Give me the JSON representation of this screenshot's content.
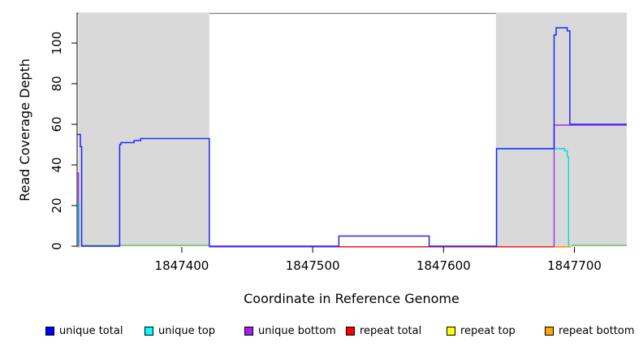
{
  "chart_data": {
    "type": "line",
    "title": "",
    "xlabel": "Coordinate in Reference Genome",
    "ylabel": "Read Coverage Depth",
    "x_range": [
      1847320,
      1847740
    ],
    "y_range": [
      0,
      115
    ],
    "x_ticks": [
      1847400,
      1847500,
      1847600,
      1847700
    ],
    "y_ticks": [
      0,
      20,
      40,
      60,
      80,
      100
    ],
    "grid": "off",
    "legend_position": "bottom",
    "frame_top_color": "#808080",
    "shaded_regions": [
      {
        "x0": 1847321,
        "x1": 1847421,
        "color": "#d9d9d9"
      },
      {
        "x0": 1847640,
        "x1": 1847740,
        "color": "#d9d9d9"
      }
    ],
    "legend": {
      "entries": [
        {
          "label": "unique total",
          "color": "#0000ff"
        },
        {
          "label": "unique top",
          "color": "#00ffff"
        },
        {
          "label": "unique bottom",
          "color": "#a020f0"
        },
        {
          "label": "repeat total",
          "color": "#ff0000"
        },
        {
          "label": "repeat top",
          "color": "#ffff00"
        },
        {
          "label": "repeat bottom",
          "color": "#ffa500"
        }
      ]
    },
    "series": [
      {
        "name": "unique bottom",
        "color": "#9b30e8",
        "width": 1.4,
        "segments": [
          [
            [
              1847320,
              36
            ],
            [
              1847321,
              36
            ],
            [
              1847321,
              0
            ]
          ],
          [
            [
              1847421,
              -0.3
            ],
            [
              1847684.5,
              -0.3
            ],
            [
              1847684.5,
              59.6
            ],
            [
              1847740,
              59.6
            ]
          ]
        ]
      },
      {
        "name": "repeat total",
        "color": "#ee1111",
        "width": 1.4,
        "segments": [
          [
            [
              1847519.5,
              -0.3
            ],
            [
              1847684.5,
              -0.3
            ]
          ]
        ]
      },
      {
        "name": "repeat top",
        "color": "#ffff00",
        "width": 1.4,
        "segments": []
      },
      {
        "name": "repeat bottom",
        "color": "#ff9900",
        "width": 1.6,
        "segments": [
          [
            [
              1847320,
              -0.3
            ],
            [
              1847322,
              -0.3
            ]
          ],
          [
            [
              1847684.5,
              -0.3
            ],
            [
              1847697.5,
              -0.3
            ]
          ]
        ]
      },
      {
        "name": "baseline overlap green",
        "color": "#6abf69",
        "width": 1.4,
        "segments": [
          [
            [
              1847323,
              0.4
            ],
            [
              1847421,
              0.4
            ]
          ],
          [
            [
              1847697.5,
              0.4
            ],
            [
              1847740,
              0.4
            ]
          ]
        ]
      },
      {
        "name": "unique top",
        "color": "#00dde0",
        "width": 1.4,
        "segments": [
          [
            [
              1847320,
              21
            ],
            [
              1847321.5,
              21
            ],
            [
              1847321.5,
              0
            ]
          ],
          [
            [
              1847640.5,
              0
            ],
            [
              1847640.5,
              48
            ],
            [
              1847692.5,
              48
            ],
            [
              1847692.5,
              47
            ],
            [
              1847694.5,
              47
            ],
            [
              1847694.5,
              44
            ],
            [
              1847695.5,
              44
            ],
            [
              1847695.5,
              0
            ]
          ]
        ]
      },
      {
        "name": "unique total",
        "color": "#2424ff",
        "width": 1.5,
        "segments": [
          [
            [
              1847320,
              55
            ],
            [
              1847322.5,
              55
            ],
            [
              1847322.5,
              49
            ],
            [
              1847323.5,
              49
            ],
            [
              1847323.5,
              0
            ],
            [
              1847352.5,
              0
            ],
            [
              1847352.5,
              50
            ],
            [
              1847353.5,
              50
            ],
            [
              1847353.5,
              51
            ],
            [
              1847363.5,
              51
            ],
            [
              1847363.5,
              52
            ],
            [
              1847368.5,
              52
            ],
            [
              1847368.5,
              53
            ],
            [
              1847421,
              53
            ],
            [
              1847421,
              0
            ],
            [
              1847520,
              0
            ],
            [
              1847520,
              5
            ],
            [
              1847589,
              5
            ],
            [
              1847589,
              0
            ],
            [
              1847640.5,
              0
            ],
            [
              1847640.5,
              48
            ],
            [
              1847684.5,
              48
            ],
            [
              1847684.5,
              104
            ],
            [
              1847686,
              104
            ],
            [
              1847686,
              107.5
            ],
            [
              1847694.5,
              107.5
            ],
            [
              1847694.5,
              106
            ],
            [
              1847696.5,
              106
            ],
            [
              1847696.5,
              60
            ],
            [
              1847740,
              60
            ]
          ]
        ]
      }
    ]
  }
}
